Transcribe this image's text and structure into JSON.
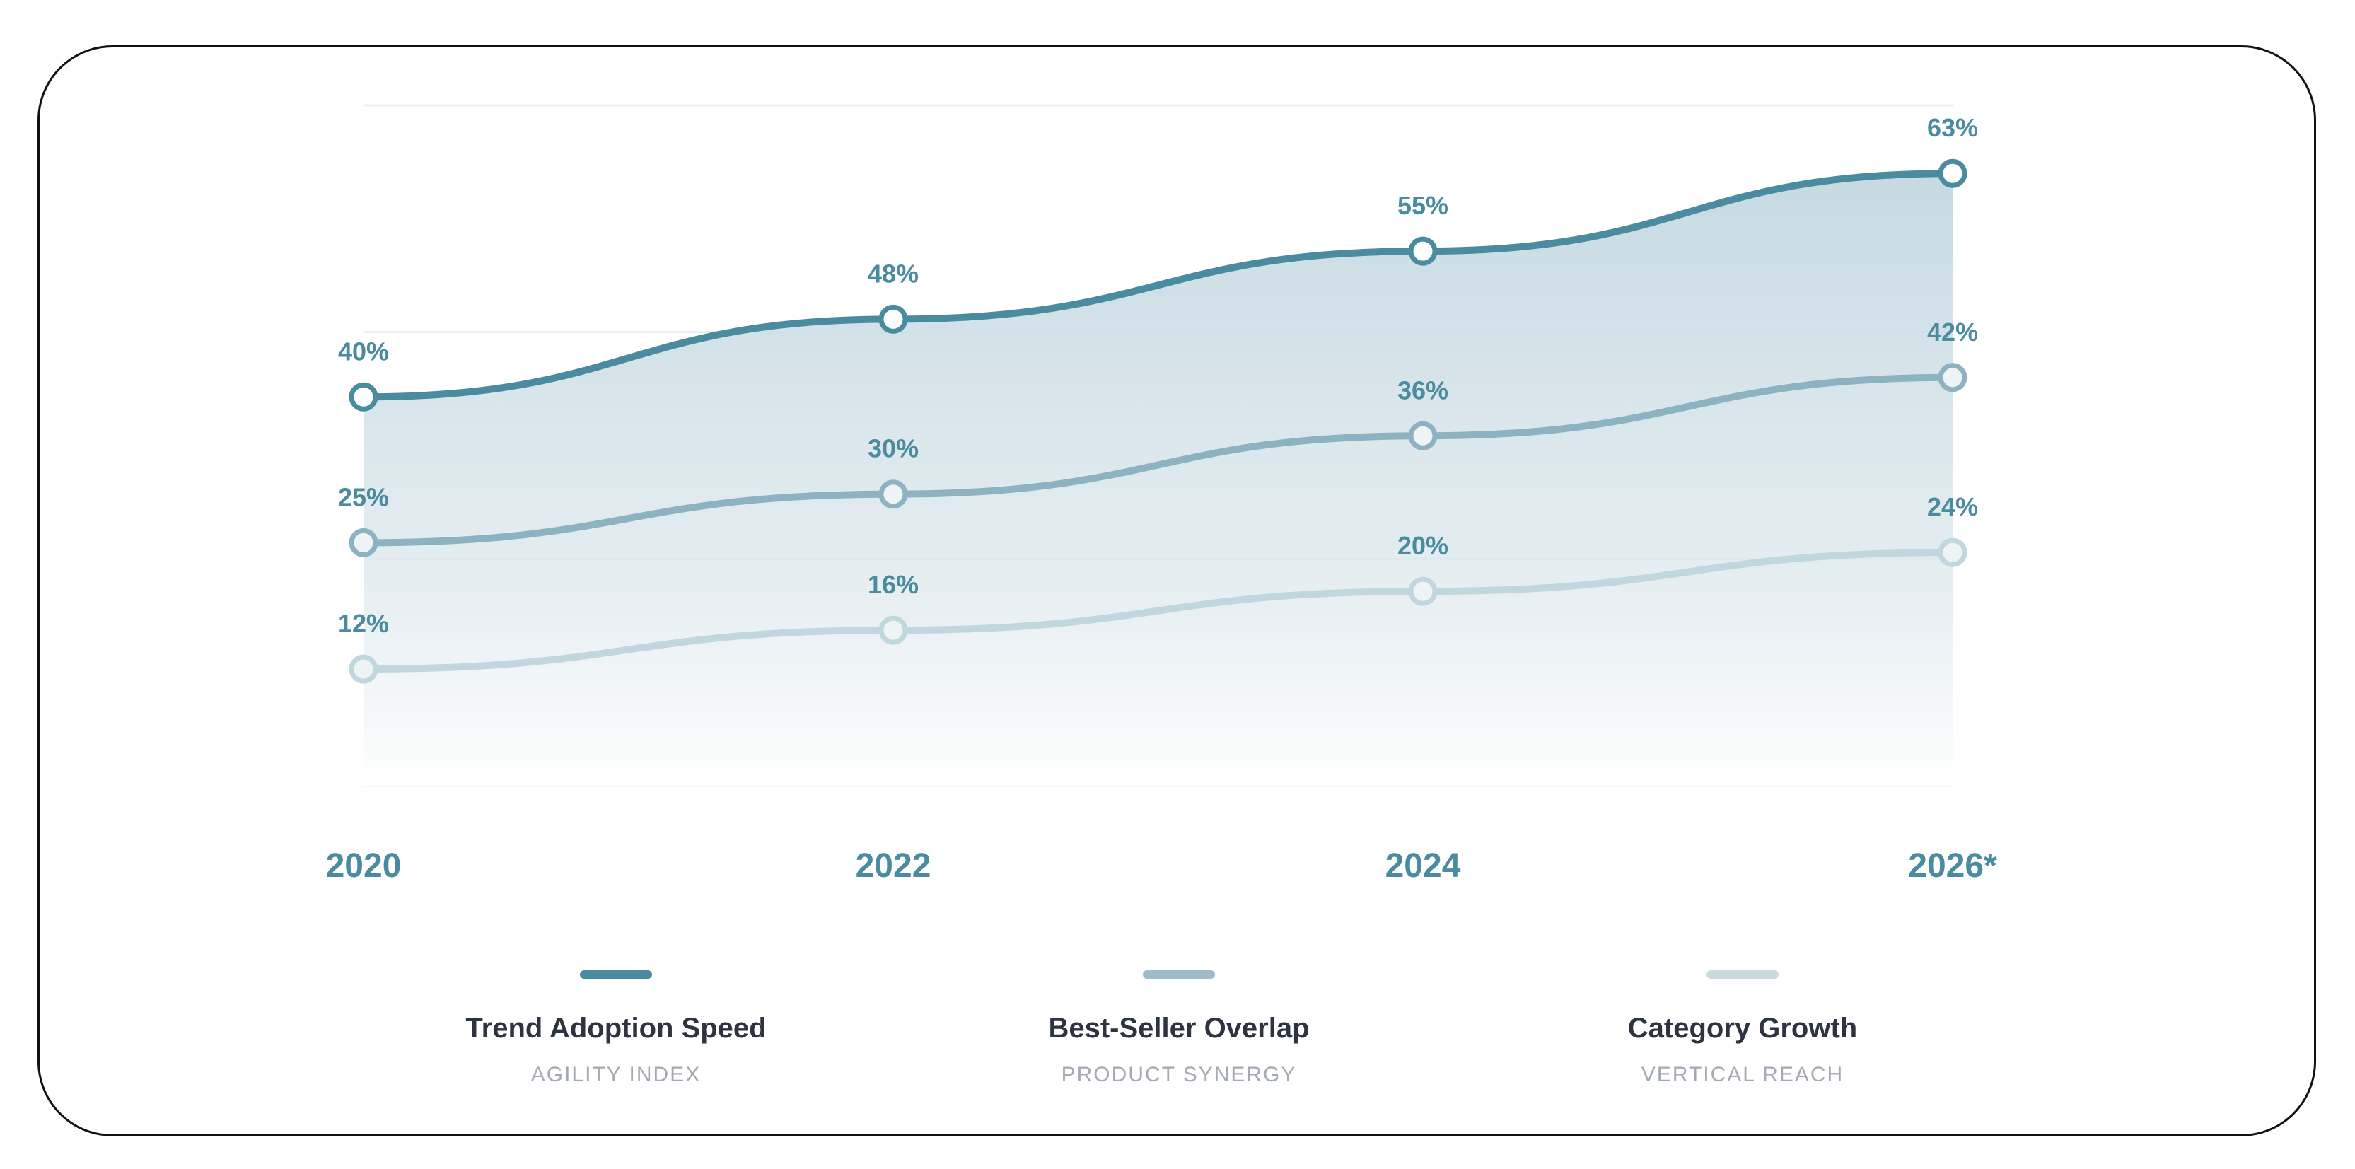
{
  "chart_data": {
    "type": "line",
    "x": [
      "2020",
      "2022",
      "2024",
      "2026*"
    ],
    "ylim": [
      0,
      70
    ],
    "grid": true,
    "legend_placement": "bottom",
    "series": [
      {
        "name": "Trend Adoption Speed",
        "subtitle": "AGILITY INDEX",
        "values": [
          40,
          48,
          55,
          63
        ],
        "labels": [
          "40%",
          "48%",
          "55%",
          "63%"
        ],
        "color": "#4a8ba0"
      },
      {
        "name": "Best-Seller Overlap",
        "subtitle": "PRODUCT SYNERGY",
        "values": [
          25,
          30,
          36,
          42
        ],
        "labels": [
          "25%",
          "30%",
          "36%",
          "42%"
        ],
        "color": "#8db3c2"
      },
      {
        "name": "Category Growth",
        "subtitle": "VERTICAL REACH",
        "values": [
          12,
          16,
          20,
          24
        ],
        "labels": [
          "12%",
          "16%",
          "20%",
          "24%"
        ],
        "color": "#c0d8dd"
      }
    ],
    "label_color": "#4a8ba0"
  }
}
